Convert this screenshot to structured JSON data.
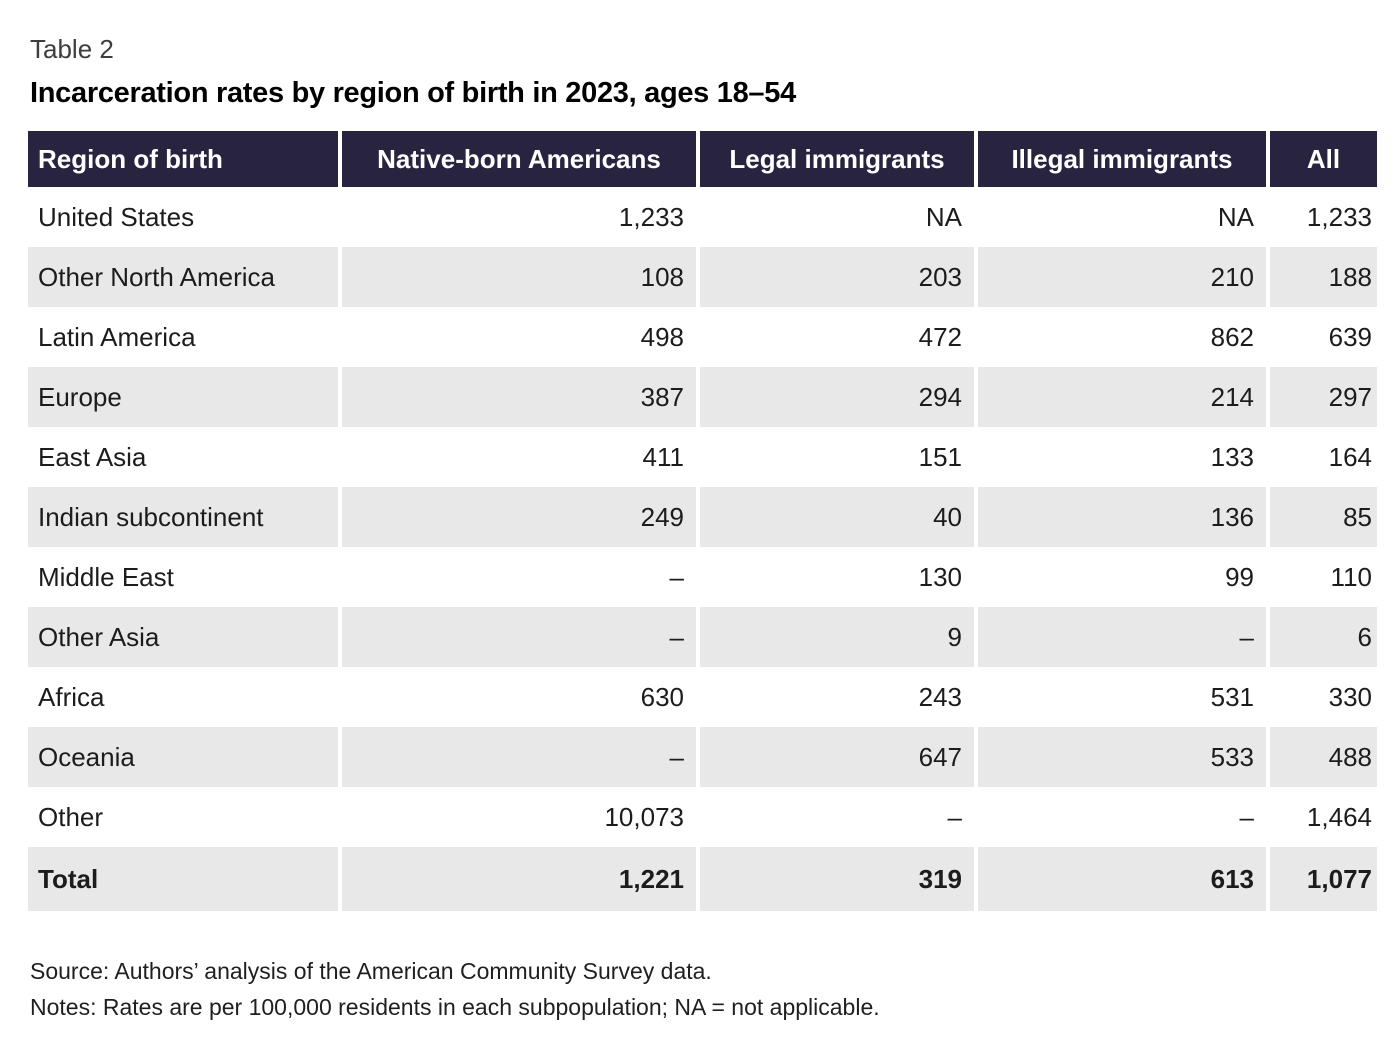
{
  "table_label": "Table 2",
  "title": "Incarceration rates by region of birth in 2023, ages 18–54",
  "source": "Source: Authors’ analysis of the American Community Survey data.",
  "notes": "Notes: Rates are per 100,000 residents in each subpopulation; NA = not applicable.",
  "colors": {
    "header_bg": "#282440",
    "header_text": "#ffffff",
    "shaded_row_bg": "#e8e8e8",
    "body_text": "#1c1c1c",
    "label_text": "#3d3d3d"
  },
  "chart_data": {
    "type": "table",
    "title": "Incarceration rates by region of birth in 2023, ages 18–54",
    "columns": [
      "Region of birth",
      "Native-born Americans",
      "Legal immigrants",
      "Illegal immigrants",
      "All"
    ],
    "rows": [
      {
        "region": "United States",
        "values": [
          "1,233",
          "NA",
          "NA",
          "1,233"
        ]
      },
      {
        "region": "Other North America",
        "values": [
          "108",
          "203",
          "210",
          "188"
        ]
      },
      {
        "region": "Latin America",
        "values": [
          "498",
          "472",
          "862",
          "639"
        ]
      },
      {
        "region": "Europe",
        "values": [
          "387",
          "294",
          "214",
          "297"
        ]
      },
      {
        "region": "East Asia",
        "values": [
          "411",
          "151",
          "133",
          "164"
        ]
      },
      {
        "region": "Indian subcontinent",
        "values": [
          "249",
          "40",
          "136",
          "85"
        ]
      },
      {
        "region": "Middle East",
        "values": [
          "–",
          "130",
          "99",
          "110"
        ]
      },
      {
        "region": "Other Asia",
        "values": [
          "–",
          "9",
          "–",
          "6"
        ]
      },
      {
        "region": "Africa",
        "values": [
          "630",
          "243",
          "531",
          "330"
        ]
      },
      {
        "region": "Oceania",
        "values": [
          "–",
          "647",
          "533",
          "488"
        ]
      },
      {
        "region": "Other",
        "values": [
          "10,073",
          "–",
          "–",
          "1,464"
        ]
      },
      {
        "region": "Total",
        "values": [
          "1,221",
          "319",
          "613",
          "1,077"
        ],
        "is_total": true
      }
    ],
    "notes": "Rates are per 100,000 residents in each subpopulation; NA = not applicable."
  }
}
